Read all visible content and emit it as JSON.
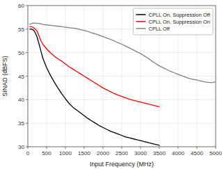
{
  "chart_data": {
    "type": "line",
    "xlabel": "Input Frequency (MHz)",
    "ylabel": "SINAD (dBFS)",
    "xlim": [
      0,
      5000
    ],
    "ylim": [
      30,
      60
    ],
    "xticks": [
      0,
      500,
      1000,
      1500,
      2000,
      2500,
      3000,
      3500,
      4000,
      4500,
      5000
    ],
    "yticks": [
      30,
      35,
      40,
      45,
      50,
      55,
      60
    ],
    "grid": true,
    "legend": "upper right",
    "series": [
      {
        "name": "CPLL On, Suppression Off",
        "color": "black",
        "x": [
          50,
          100,
          150,
          200,
          250,
          300,
          350,
          400,
          500,
          600,
          700,
          800,
          900,
          1000,
          1100,
          1200,
          1300,
          1400,
          1500,
          1600,
          1700,
          1800,
          1900,
          2000,
          2100,
          2200,
          2300,
          2400,
          2500,
          2600,
          2700,
          2800,
          2900,
          3000,
          3100,
          3200,
          3300,
          3400,
          3500
        ],
        "values": [
          55.0,
          55.0,
          54.8,
          54.2,
          53.2,
          51.8,
          50.3,
          48.8,
          46.8,
          45.2,
          43.8,
          42.5,
          41.3,
          40.2,
          39.2,
          38.4,
          37.8,
          37.2,
          36.6,
          36.0,
          35.5,
          35.0,
          34.5,
          34.1,
          33.7,
          33.3,
          33.0,
          32.7,
          32.4,
          32.1,
          31.9,
          31.7,
          31.5,
          31.3,
          31.1,
          30.9,
          30.7,
          30.5,
          30.3
        ]
      },
      {
        "name": "CPLL On, Suppression On",
        "color": "red",
        "x": [
          50,
          100,
          150,
          200,
          250,
          300,
          350,
          400,
          500,
          600,
          700,
          800,
          900,
          1000,
          1100,
          1200,
          1300,
          1400,
          1500,
          1600,
          1700,
          1800,
          1900,
          2000,
          2100,
          2200,
          2300,
          2400,
          2500,
          2600,
          2700,
          2800,
          2900,
          3000,
          3100,
          3200,
          3300,
          3400,
          3500
        ],
        "values": [
          55.5,
          55.5,
          55.3,
          55.0,
          54.5,
          53.5,
          52.5,
          51.8,
          50.8,
          50.0,
          49.3,
          48.7,
          48.2,
          47.6,
          47.0,
          46.5,
          46.0,
          45.5,
          45.0,
          44.5,
          44.0,
          43.5,
          43.0,
          42.5,
          42.1,
          41.7,
          41.3,
          41.0,
          40.7,
          40.4,
          40.1,
          39.9,
          39.7,
          39.5,
          39.3,
          39.1,
          38.9,
          38.7,
          38.5
        ]
      },
      {
        "name": "CPLL Off",
        "color": "gray",
        "x": [
          50,
          100,
          150,
          200,
          250,
          300,
          350,
          400,
          500,
          600,
          700,
          800,
          900,
          1000,
          1100,
          1200,
          1300,
          1400,
          1500,
          1600,
          1700,
          1800,
          1900,
          2000,
          2100,
          2200,
          2300,
          2400,
          2500,
          2600,
          2700,
          2800,
          2900,
          3000,
          3100,
          3200,
          3300,
          3400,
          3500,
          3600,
          3700,
          3800,
          3900,
          4000,
          4100,
          4200,
          4300,
          4400,
          4500,
          4600,
          4700,
          4800,
          4900,
          5000
        ],
        "values": [
          56.0,
          56.2,
          56.3,
          56.3,
          56.2,
          56.2,
          56.1,
          56.0,
          55.9,
          55.8,
          55.7,
          55.6,
          55.5,
          55.4,
          55.3,
          55.2,
          55.1,
          54.9,
          54.7,
          54.5,
          54.2,
          54.0,
          53.7,
          53.4,
          53.1,
          52.8,
          52.5,
          52.1,
          51.8,
          51.4,
          51.0,
          50.6,
          50.2,
          49.8,
          49.3,
          48.8,
          48.2,
          47.7,
          47.2,
          46.8,
          46.4,
          46.0,
          45.7,
          45.4,
          45.1,
          44.8,
          44.5,
          44.3,
          44.2,
          44.0,
          43.8,
          43.7,
          43.6,
          43.8
        ]
      }
    ]
  }
}
